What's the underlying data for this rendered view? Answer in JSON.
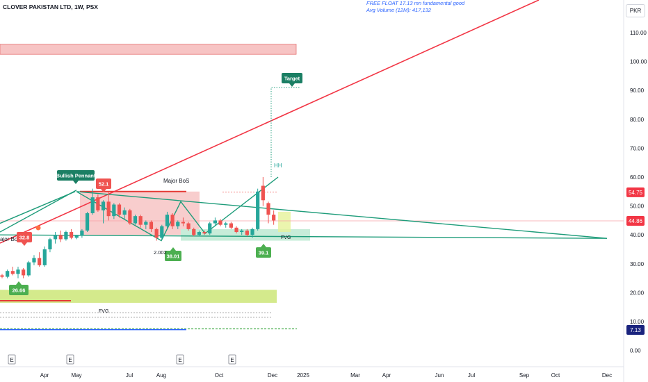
{
  "header": {
    "title": "CLOVER PAKISTAN LTD, 1W, PSX",
    "free_float": "FREE FLOAT 17.13 mn fundamental good",
    "avg_volume": "Avg Volume (12M): 417,132",
    "currency": "PKR"
  },
  "colors": {
    "up": "#26a69a",
    "down": "#ef5350",
    "trendline_red": "#f23645",
    "pennant": "#1e9c7a",
    "zone_red": "#f7c4c4",
    "zone_green": "#c7ecd9",
    "zone_lime": "#d4ea8c"
  },
  "chart_data": {
    "type": "candlestick",
    "title": "CLOVER PAKISTAN LTD, 1W, PSX",
    "y_axis": {
      "ticks": [
        0,
        10,
        20,
        30,
        40,
        50,
        60,
        70,
        80,
        90,
        100,
        110
      ],
      "tick_labels": [
        "0.00",
        "10.00",
        "20.00",
        "30.00",
        "40.00",
        "50.00",
        "60.00",
        "70.00",
        "80.00",
        "90.00",
        "100.00",
        "110.00"
      ],
      "range": [
        -2,
        122
      ]
    },
    "x_axis": {
      "labels": [
        "Apr",
        "May",
        "Jul",
        "Aug",
        "Oct",
        "Dec",
        "2025",
        "Mar",
        "Apr",
        "Jun",
        "Jul",
        "Sep",
        "Oct",
        "Dec"
      ],
      "earnings_markers": [
        "E",
        "E",
        "E",
        "E"
      ]
    },
    "price_labels": [
      {
        "value": "54.75",
        "price": 54.75,
        "color": "#f23645"
      },
      {
        "value": "44.86",
        "price": 44.86,
        "color": "#f23645"
      },
      {
        "value": "7.13",
        "price": 7.13,
        "color": "#1a237e"
      }
    ],
    "candles": [
      {
        "o": 26,
        "h": 26.5,
        "l": 25,
        "c": 25.5
      },
      {
        "o": 25.5,
        "h": 28,
        "l": 25,
        "c": 27.5
      },
      {
        "o": 27.5,
        "h": 29,
        "l": 26,
        "c": 26.5
      },
      {
        "o": 26.5,
        "h": 29,
        "l": 25,
        "c": 28
      },
      {
        "o": 28,
        "h": 28.5,
        "l": 25,
        "c": 26
      },
      {
        "o": 26,
        "h": 31,
        "l": 25.5,
        "c": 30.5
      },
      {
        "o": 30.5,
        "h": 33,
        "l": 29.5,
        "c": 32
      },
      {
        "o": 32,
        "h": 34,
        "l": 29,
        "c": 29.5
      },
      {
        "o": 29.5,
        "h": 36,
        "l": 29,
        "c": 35
      },
      {
        "o": 35,
        "h": 39,
        "l": 34,
        "c": 38.5
      },
      {
        "o": 38.5,
        "h": 41,
        "l": 37,
        "c": 40
      },
      {
        "o": 40,
        "h": 41.5,
        "l": 37.5,
        "c": 38.5
      },
      {
        "o": 38.5,
        "h": 41.5,
        "l": 38,
        "c": 41
      },
      {
        "o": 41,
        "h": 42,
        "l": 38.5,
        "c": 39
      },
      {
        "o": 39,
        "h": 40,
        "l": 38.5,
        "c": 39.8
      },
      {
        "o": 39.8,
        "h": 42,
        "l": 39,
        "c": 41.5
      },
      {
        "o": 41.5,
        "h": 48,
        "l": 41,
        "c": 47.5
      },
      {
        "o": 47.5,
        "h": 56,
        "l": 47,
        "c": 53
      },
      {
        "o": 53,
        "h": 54,
        "l": 48,
        "c": 48.5
      },
      {
        "o": 48.5,
        "h": 52,
        "l": 44,
        "c": 51.5
      },
      {
        "o": 51.5,
        "h": 55,
        "l": 45,
        "c": 46.5
      },
      {
        "o": 46.5,
        "h": 51,
        "l": 45.5,
        "c": 50.5
      },
      {
        "o": 50.5,
        "h": 51,
        "l": 46,
        "c": 47
      },
      {
        "o": 47,
        "h": 49.5,
        "l": 45.5,
        "c": 48.5
      },
      {
        "o": 48.5,
        "h": 49,
        "l": 43.5,
        "c": 44
      },
      {
        "o": 44,
        "h": 47,
        "l": 43.5,
        "c": 46.5
      },
      {
        "o": 46.5,
        "h": 47,
        "l": 42.5,
        "c": 43.5
      },
      {
        "o": 43.5,
        "h": 45,
        "l": 42,
        "c": 44.5
      },
      {
        "o": 44.5,
        "h": 45,
        "l": 41,
        "c": 42
      },
      {
        "o": 42,
        "h": 42.5,
        "l": 38,
        "c": 39
      },
      {
        "o": 39,
        "h": 43.5,
        "l": 38.5,
        "c": 43
      },
      {
        "o": 43,
        "h": 48,
        "l": 42.5,
        "c": 47
      },
      {
        "o": 47,
        "h": 47.5,
        "l": 42,
        "c": 43
      },
      {
        "o": 43,
        "h": 45,
        "l": 42,
        "c": 44.5
      },
      {
        "o": 44.5,
        "h": 46,
        "l": 43,
        "c": 44
      },
      {
        "o": 44,
        "h": 44.5,
        "l": 41.5,
        "c": 42
      },
      {
        "o": 42,
        "h": 42.5,
        "l": 39.5,
        "c": 40
      },
      {
        "o": 40,
        "h": 41.5,
        "l": 39.5,
        "c": 41
      },
      {
        "o": 41,
        "h": 41.5,
        "l": 40,
        "c": 40.5
      },
      {
        "o": 40.5,
        "h": 44.5,
        "l": 40,
        "c": 44
      },
      {
        "o": 44,
        "h": 46,
        "l": 43,
        "c": 45
      },
      {
        "o": 45,
        "h": 45.5,
        "l": 43,
        "c": 43.5
      },
      {
        "o": 43.5,
        "h": 44.5,
        "l": 42.5,
        "c": 44
      },
      {
        "o": 44,
        "h": 44.5,
        "l": 42,
        "c": 42.5
      },
      {
        "o": 42.5,
        "h": 43,
        "l": 40.5,
        "c": 41
      },
      {
        "o": 41,
        "h": 42,
        "l": 40,
        "c": 41.5
      },
      {
        "o": 41.5,
        "h": 42,
        "l": 39.5,
        "c": 40
      },
      {
        "o": 40,
        "h": 42.5,
        "l": 39,
        "c": 42
      },
      {
        "o": 42,
        "h": 56,
        "l": 41.5,
        "c": 55
      },
      {
        "o": 57,
        "h": 60,
        "l": 50,
        "c": 52
      },
      {
        "o": 51,
        "h": 51.5,
        "l": 44,
        "c": 47
      },
      {
        "o": 47,
        "h": 48.5,
        "l": 43.5,
        "c": 45
      }
    ],
    "annotations": [
      {
        "text": "Bullish Pennant",
        "kind": "label"
      },
      {
        "text": "Target",
        "kind": "label"
      },
      {
        "text": "Major BoS",
        "kind": "text"
      },
      {
        "text": "ajor BoS",
        "kind": "text"
      },
      {
        "text": "HH",
        "kind": "text"
      },
      {
        "text": "FVG",
        "kind": "text"
      },
      {
        "text": "FVG",
        "kind": "text"
      },
      {
        "text": "38.01",
        "kind": "label"
      },
      {
        "text": "39.1",
        "kind": "label"
      },
      {
        "text": "26.66",
        "kind": "label"
      },
      {
        "text": "2.002",
        "kind": "text"
      },
      {
        "text": "52.1",
        "kind": "label"
      },
      {
        "text": "32.8",
        "kind": "label"
      }
    ]
  }
}
